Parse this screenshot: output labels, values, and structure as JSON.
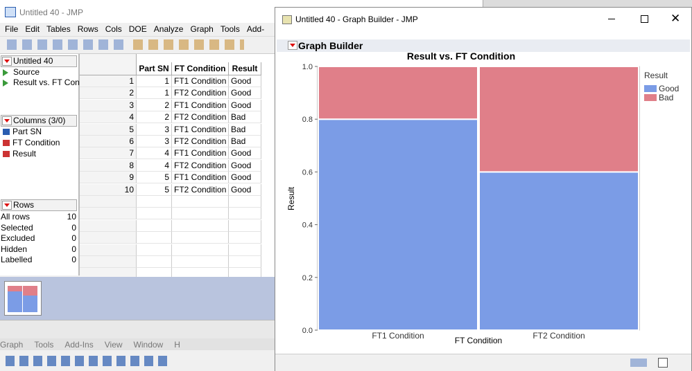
{
  "main_window": {
    "title": "Untitled 40 - JMP",
    "menu": [
      "File",
      "Edit",
      "Tables",
      "Rows",
      "Cols",
      "DOE",
      "Analyze",
      "Graph",
      "Tools",
      "Add-"
    ],
    "table_name": "Untitled 40",
    "scripts": [
      "Source",
      "Result vs. FT Cond"
    ],
    "columns_header": "Columns (3/0)",
    "columns": [
      "Part SN",
      "FT Condition",
      "Result"
    ],
    "rows_header": "Rows",
    "row_states": [
      [
        "All rows",
        10
      ],
      [
        "Selected",
        0
      ],
      [
        "Excluded",
        0
      ],
      [
        "Hidden",
        0
      ],
      [
        "Labelled",
        0
      ]
    ],
    "table": {
      "headers": [
        "Part SN",
        "FT Condition",
        "Result"
      ],
      "rows": [
        [
          1,
          1,
          "FT1 Condition",
          "Good"
        ],
        [
          2,
          1,
          "FT2 Condition",
          "Good"
        ],
        [
          3,
          2,
          "FT1 Condition",
          "Good"
        ],
        [
          4,
          2,
          "FT2 Condition",
          "Bad"
        ],
        [
          5,
          3,
          "FT1 Condition",
          "Bad"
        ],
        [
          6,
          3,
          "FT2 Condition",
          "Bad"
        ],
        [
          7,
          4,
          "FT1 Condition",
          "Good"
        ],
        [
          8,
          4,
          "FT2 Condition",
          "Good"
        ],
        [
          9,
          5,
          "FT1 Condition",
          "Good"
        ],
        [
          10,
          5,
          "FT2 Condition",
          "Good"
        ]
      ]
    }
  },
  "home_menu": [
    "Graph",
    "Tools",
    "Add-Ins",
    "View",
    "Window",
    "H"
  ],
  "graph_window": {
    "title": "Untitled 40 - Graph Builder - JMP",
    "section": "Graph Builder"
  },
  "chart_data": {
    "type": "bar",
    "stacked": true,
    "title": "Result vs. FT Condition",
    "x_label": "FT Condition",
    "y_label": "Result",
    "categories": [
      "FT1 Condition",
      "FT2 Condition"
    ],
    "series": [
      {
        "name": "Good",
        "color": "#7b9ce6",
        "values": [
          0.8,
          0.6
        ]
      },
      {
        "name": "Bad",
        "color": "#e07f89",
        "values": [
          0.2,
          0.4
        ]
      }
    ],
    "ylim": [
      0,
      1
    ],
    "yticks": [
      {
        "value": 0,
        "label": "0.0"
      },
      0.2,
      0.4,
      0.6,
      0.8,
      {
        "value": 1,
        "label": "1.0"
      }
    ],
    "legend_title": "Result",
    "legend": "right"
  }
}
